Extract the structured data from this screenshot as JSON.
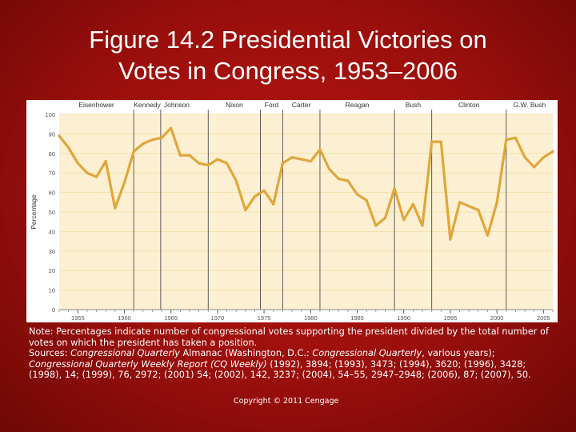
{
  "slide": {
    "title_line1": "Figure 14.2 Presidential Victories on",
    "title_line2": "Votes in Congress, 1953–2006"
  },
  "note": {
    "text": "Note: Percentages indicate number of congressional votes supporting the president divided by the total number of votes on which the president has taken a position.",
    "sources_label": "Sources: ",
    "source1_title": "Congressional Quarterly",
    "source1_text": " Almanac (Washington, D.C.: ",
    "source1_publisher": "Congressional Quarterly",
    "source1_tail": ", various years); ",
    "source2_title": "Congressional Quarterly Weekly Report (CQ Weekly)",
    "source2_tail": " (1992), 3894; (1993), 3473; (1994), 3620; (1996), 3428; (1998), 14; (1999), 76, 2972; (2001) 54; (2002), 142, 3237; (2004), 54–55, 2947–2948; (2006), 87; (2007), 50."
  },
  "copyright": "Copyright © 2011 Cengage",
  "colors": {
    "background": "#a8110d",
    "plot_background": "#fdf0d2",
    "line": "#e0a63a",
    "gridline": "#f3dfae",
    "president_divider": "#4a4a4a"
  },
  "chart_data": {
    "type": "line",
    "title": "",
    "xlabel": "",
    "ylabel": "Percentage",
    "xlim": [
      1953,
      2006
    ],
    "ylim": [
      0,
      100
    ],
    "x_ticks": [
      1955,
      1960,
      1965,
      1970,
      1975,
      1980,
      1985,
      1990,
      1995,
      2000,
      2005
    ],
    "y_ticks": [
      0,
      10,
      20,
      30,
      40,
      50,
      60,
      70,
      80,
      90,
      100
    ],
    "grid": true,
    "legend": "none",
    "presidents": [
      {
        "name": "Eisenhower",
        "start": 1953
      },
      {
        "name": "Kennedy",
        "start": 1961
      },
      {
        "name": "Johnson",
        "start": 1963.9
      },
      {
        "name": "Nixon",
        "start": 1969
      },
      {
        "name": "Ford",
        "start": 1974.6
      },
      {
        "name": "Carter",
        "start": 1977
      },
      {
        "name": "Reagan",
        "start": 1981
      },
      {
        "name": "Bush",
        "start": 1989
      },
      {
        "name": "Clinton",
        "start": 1993
      },
      {
        "name": "G.W. Bush",
        "start": 2001
      }
    ],
    "series": [
      {
        "x": [
          1953,
          1954,
          1955,
          1956,
          1957,
          1958,
          1959,
          1960,
          1961,
          1962,
          1963,
          1964,
          1965,
          1966,
          1967,
          1968,
          1969,
          1970,
          1971,
          1972,
          1973,
          1974,
          1975,
          1976,
          1977,
          1978,
          1979,
          1980,
          1981,
          1982,
          1983,
          1984,
          1985,
          1986,
          1987,
          1988,
          1989,
          1990,
          1991,
          1992,
          1993,
          1994,
          1995,
          1996,
          1997,
          1998,
          1999,
          2000,
          2001,
          2002,
          2003,
          2004,
          2005,
          2006
        ],
        "values": [
          89,
          83,
          75,
          70,
          68,
          76,
          52,
          65,
          81,
          85,
          87,
          88,
          93,
          79,
          79,
          75,
          74,
          77,
          75,
          66,
          51,
          58,
          61,
          54,
          75,
          78,
          77,
          76,
          82,
          72,
          67,
          66,
          59,
          56,
          43,
          47,
          62,
          46,
          54,
          43,
          86,
          86,
          36,
          55,
          53,
          51,
          38,
          55,
          87,
          88,
          78,
          73,
          78,
          81
        ]
      }
    ]
  }
}
